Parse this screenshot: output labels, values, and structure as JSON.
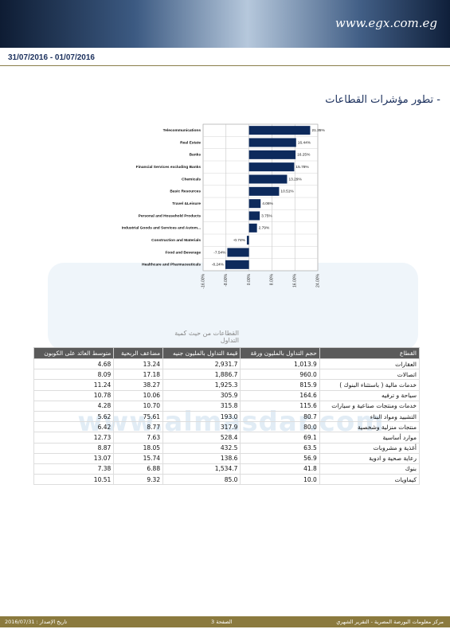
{
  "header": {
    "logo": "www.egx.com.eg",
    "date_range": "31/07/2016 - 01/07/2016"
  },
  "section_title": "- تطور مؤشرات القطاعات",
  "chart_data": {
    "type": "bar",
    "orientation": "horizontal",
    "color": "#0d2a5c",
    "grid": true,
    "categories": [
      "Telecommunications",
      "Real Estate",
      "Banks",
      "Financial Services excluding Banks",
      "Chemicals",
      "Basic Resources",
      "Travel &Leisure",
      "Personal and Household Products",
      "Industrial Goods and Services and Autom...",
      "Construction and Materials",
      "Food and Beverage",
      "Healthcare and Pharmaceuticals"
    ],
    "values": [
      21.35,
      16.44,
      16.25,
      15.78,
      13.29,
      10.51,
      4.06,
      3.75,
      2.79,
      -0.74,
      -7.54,
      -8.24
    ],
    "value_labels": [
      "21.35%",
      "16.44%",
      "16.25%",
      "15.78%",
      "13.29%",
      "10.51%",
      "4.06%",
      "3.75%",
      "2.79%",
      "-0.74%",
      "-7.54%",
      "-8.24%"
    ],
    "xlim": [
      -16,
      24
    ],
    "xticks": [
      {
        "value": -16,
        "label": "-16.00%"
      },
      {
        "value": -8,
        "label": "-8.00%"
      },
      {
        "value": 0,
        "label": "0.00%"
      },
      {
        "value": 8,
        "label": "8.00%"
      },
      {
        "value": 16,
        "label": "16.00%"
      },
      {
        "value": 24,
        "label": "24.00%"
      }
    ]
  },
  "watermark": "www.almasdar.com",
  "table": {
    "caption": "القطاعات من حيث كمية التداول",
    "columns": [
      "القطاع",
      "حجم التداول بالمليون ورقة",
      "قيمة التداول بالمليون جنيه",
      "مضاعف الربحية",
      "متوسط العائد على الكوبون"
    ],
    "rows": [
      [
        "العقارات",
        "1,013.9",
        "2,931.7",
        "13.24",
        "4.68"
      ],
      [
        "اتصالات",
        "960.0",
        "1,886.7",
        "17.18",
        "8.09"
      ],
      [
        "خدمات مالية ( باستثناء البنوك )",
        "815.9",
        "1,925.3",
        "38.27",
        "11.24"
      ],
      [
        "سياحة و ترفيه",
        "164.6",
        "305.9",
        "10.06",
        "10.78"
      ],
      [
        "خدمات ومنتجات صناعية و سيارات",
        "115.6",
        "315.8",
        "10.70",
        "4.28"
      ],
      [
        "التشييد ومواد البناء",
        "80.7",
        "193.0",
        "75.61",
        "5.62"
      ],
      [
        "منتجات منزلية وشخصية",
        "80.0",
        "317.9",
        "8.77",
        "6.42"
      ],
      [
        "موارد أساسية",
        "69.1",
        "528.4",
        "7.63",
        "12.73"
      ],
      [
        "أغذية و مشروبات",
        "63.5",
        "432.5",
        "18.05",
        "8.87"
      ],
      [
        "رعاية صحية و ادوية",
        "56.9",
        "138.6",
        "15.74",
        "13.07"
      ],
      [
        "بنوك",
        "41.8",
        "1,534.7",
        "6.88",
        "7.38"
      ],
      [
        "كيماويات",
        "10.0",
        "85.0",
        "9.32",
        "10.51"
      ]
    ]
  },
  "footer": {
    "right": "مركز معلومات البورصة المصرية - التقرير الشهري",
    "center": "الصفحة 3",
    "left": "تاريخ الإصدار : 2016/07/31"
  }
}
